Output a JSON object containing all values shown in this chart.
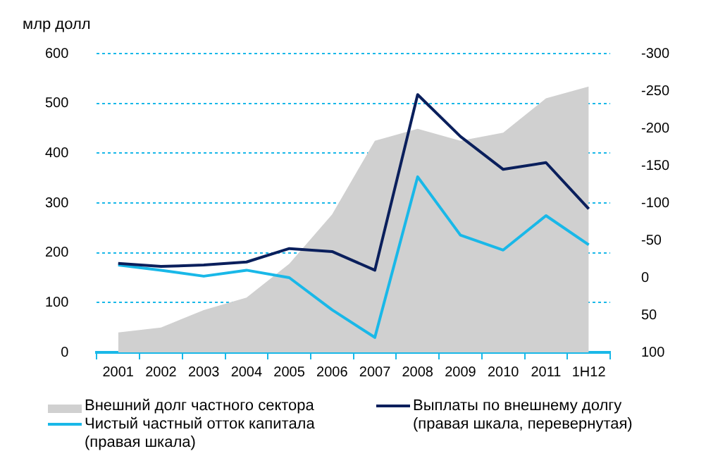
{
  "chart_data": {
    "type": "area",
    "ylabel": "млр долл",
    "categories": [
      "2001",
      "2002",
      "2003",
      "2004",
      "2005",
      "2006",
      "2007",
      "2008",
      "2009",
      "2010",
      "2011",
      "1H12"
    ],
    "series": [
      {
        "name": "Внешний долг частного сектора",
        "color": "#d0d0d0",
        "values": [
          40,
          50,
          85,
          110,
          178,
          277,
          425,
          449,
          425,
          441,
          510,
          534
        ]
      },
      {
        "name": "Выплаты по внешнему долгу (правая шкала, перевернутая)",
        "type": "line",
        "axis": "y2",
        "color": "#0a1f5c",
        "values": [
          -19,
          -15,
          -17,
          -21,
          -39,
          -35,
          -10,
          -245,
          -189,
          -145,
          -154,
          -92
        ]
      },
      {
        "name": "Чистый частный отток капитала (правая шкала)",
        "type": "line",
        "axis": "y2",
        "color": "#19b8e8",
        "values": [
          -17,
          -10,
          -2,
          -10,
          0,
          43,
          80,
          -135,
          -57,
          -37,
          -83,
          -44
        ]
      }
    ],
    "ylim": [
      0,
      600
    ],
    "yticks": [
      0,
      100,
      200,
      300,
      400,
      500,
      600
    ],
    "y2lim": [
      100,
      -300
    ],
    "y2ticks": [
      -300,
      -250,
      -200,
      -150,
      -100,
      -50,
      0,
      50,
      100
    ],
    "grid": "y",
    "legend": "bottom",
    "line_style": "solid",
    "marker": "none"
  }
}
